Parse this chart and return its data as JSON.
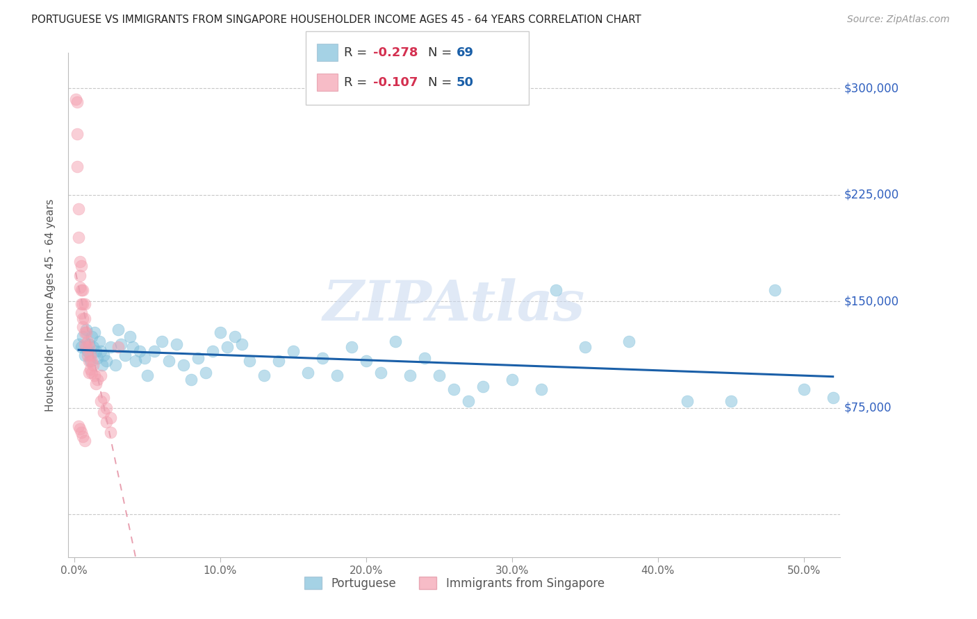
{
  "title": "PORTUGUESE VS IMMIGRANTS FROM SINGAPORE HOUSEHOLDER INCOME AGES 45 - 64 YEARS CORRELATION CHART",
  "source": "Source: ZipAtlas.com",
  "ylabel": "Householder Income Ages 45 - 64 years",
  "y_ticks": [
    0,
    75000,
    150000,
    225000,
    300000
  ],
  "y_tick_labels": [
    "",
    "$75,000",
    "$150,000",
    "$225,000",
    "$300,000"
  ],
  "ylim": [
    -30000,
    325000
  ],
  "xlim": [
    -0.004,
    0.525
  ],
  "R_blue": -0.278,
  "N_blue": 69,
  "R_pink": -0.107,
  "N_pink": 50,
  "blue_color": "#7fbfda",
  "pink_color": "#f4a0b0",
  "blue_line_color": "#1a5fa8",
  "pink_line_color": "#e8a0b0",
  "blue_scatter": [
    [
      0.003,
      120000
    ],
    [
      0.005,
      118000
    ],
    [
      0.006,
      125000
    ],
    [
      0.007,
      112000
    ],
    [
      0.008,
      130000
    ],
    [
      0.009,
      115000
    ],
    [
      0.01,
      120000
    ],
    [
      0.011,
      108000
    ],
    [
      0.012,
      125000
    ],
    [
      0.013,
      118000
    ],
    [
      0.014,
      128000
    ],
    [
      0.015,
      115000
    ],
    [
      0.016,
      110000
    ],
    [
      0.017,
      122000
    ],
    [
      0.018,
      115000
    ],
    [
      0.019,
      105000
    ],
    [
      0.02,
      112000
    ],
    [
      0.022,
      108000
    ],
    [
      0.025,
      118000
    ],
    [
      0.028,
      105000
    ],
    [
      0.03,
      130000
    ],
    [
      0.032,
      120000
    ],
    [
      0.035,
      112000
    ],
    [
      0.038,
      125000
    ],
    [
      0.04,
      118000
    ],
    [
      0.042,
      108000
    ],
    [
      0.045,
      115000
    ],
    [
      0.048,
      110000
    ],
    [
      0.05,
      98000
    ],
    [
      0.055,
      115000
    ],
    [
      0.06,
      122000
    ],
    [
      0.065,
      108000
    ],
    [
      0.07,
      120000
    ],
    [
      0.075,
      105000
    ],
    [
      0.08,
      95000
    ],
    [
      0.085,
      110000
    ],
    [
      0.09,
      100000
    ],
    [
      0.095,
      115000
    ],
    [
      0.1,
      128000
    ],
    [
      0.105,
      118000
    ],
    [
      0.11,
      125000
    ],
    [
      0.115,
      120000
    ],
    [
      0.12,
      108000
    ],
    [
      0.13,
      98000
    ],
    [
      0.14,
      108000
    ],
    [
      0.15,
      115000
    ],
    [
      0.16,
      100000
    ],
    [
      0.17,
      110000
    ],
    [
      0.18,
      98000
    ],
    [
      0.19,
      118000
    ],
    [
      0.2,
      108000
    ],
    [
      0.21,
      100000
    ],
    [
      0.22,
      122000
    ],
    [
      0.23,
      98000
    ],
    [
      0.24,
      110000
    ],
    [
      0.25,
      98000
    ],
    [
      0.26,
      88000
    ],
    [
      0.27,
      80000
    ],
    [
      0.28,
      90000
    ],
    [
      0.3,
      95000
    ],
    [
      0.32,
      88000
    ],
    [
      0.33,
      158000
    ],
    [
      0.35,
      118000
    ],
    [
      0.38,
      122000
    ],
    [
      0.42,
      80000
    ],
    [
      0.45,
      80000
    ],
    [
      0.48,
      158000
    ],
    [
      0.5,
      88000
    ],
    [
      0.52,
      82000
    ]
  ],
  "pink_scatter": [
    [
      0.001,
      292000
    ],
    [
      0.002,
      290000
    ],
    [
      0.002,
      268000
    ],
    [
      0.002,
      245000
    ],
    [
      0.003,
      215000
    ],
    [
      0.003,
      195000
    ],
    [
      0.004,
      178000
    ],
    [
      0.004,
      168000
    ],
    [
      0.004,
      160000
    ],
    [
      0.005,
      158000
    ],
    [
      0.005,
      148000
    ],
    [
      0.005,
      142000
    ],
    [
      0.005,
      175000
    ],
    [
      0.006,
      148000
    ],
    [
      0.006,
      138000
    ],
    [
      0.006,
      132000
    ],
    [
      0.006,
      158000
    ],
    [
      0.007,
      138000
    ],
    [
      0.007,
      128000
    ],
    [
      0.007,
      120000
    ],
    [
      0.007,
      148000
    ],
    [
      0.008,
      128000
    ],
    [
      0.008,
      118000
    ],
    [
      0.009,
      122000
    ],
    [
      0.009,
      112000
    ],
    [
      0.01,
      118000
    ],
    [
      0.01,
      108000
    ],
    [
      0.01,
      100000
    ],
    [
      0.011,
      112000
    ],
    [
      0.011,
      102000
    ],
    [
      0.012,
      108000
    ],
    [
      0.012,
      100000
    ],
    [
      0.013,
      105000
    ],
    [
      0.014,
      98000
    ],
    [
      0.015,
      92000
    ],
    [
      0.016,
      95000
    ],
    [
      0.018,
      98000
    ],
    [
      0.018,
      80000
    ],
    [
      0.02,
      82000
    ],
    [
      0.02,
      72000
    ],
    [
      0.022,
      75000
    ],
    [
      0.022,
      65000
    ],
    [
      0.025,
      68000
    ],
    [
      0.025,
      58000
    ],
    [
      0.03,
      118000
    ],
    [
      0.003,
      62000
    ],
    [
      0.004,
      60000
    ],
    [
      0.005,
      58000
    ],
    [
      0.006,
      55000
    ],
    [
      0.007,
      52000
    ]
  ],
  "background_color": "#ffffff",
  "grid_color": "#c8c8c8",
  "title_color": "#222222",
  "right_label_color": "#3060bf",
  "watermark_text": "ZIPAtlas",
  "watermark_color": "#c8d8ef",
  "watermark_alpha": 0.55,
  "legend_label1": "Portuguese",
  "legend_label2": "Immigrants from Singapore"
}
